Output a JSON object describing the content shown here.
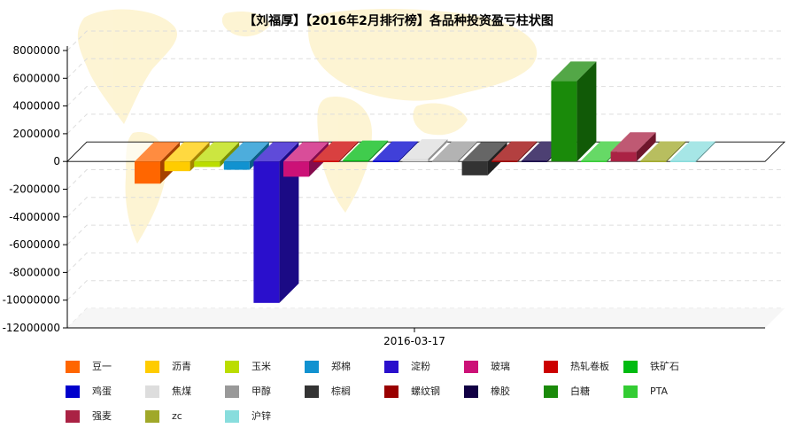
{
  "chart_data": {
    "type": "bar",
    "title": "【刘福厚】【2016年2月排行榜】各品种投资盈亏柱状图",
    "xlabel": "",
    "ylabel": "",
    "categories": [
      "2016-03-17"
    ],
    "ylim": [
      -12000000,
      8000000
    ],
    "yticks": [
      8000000,
      6000000,
      4000000,
      2000000,
      0,
      -2000000,
      -4000000,
      -6000000,
      -8000000,
      -10000000,
      -12000000
    ],
    "grid": true,
    "legend_position": "bottom",
    "series": [
      {
        "name": "豆一",
        "value": -1600000,
        "color": "#ff6600"
      },
      {
        "name": "沥青",
        "value": -700000,
        "color": "#ffcc00"
      },
      {
        "name": "玉米",
        "value": -400000,
        "color": "#bbdd00"
      },
      {
        "name": "郑棉",
        "value": -600000,
        "color": "#1192d0"
      },
      {
        "name": "淀粉",
        "value": -10200000,
        "color": "#2a0fcc"
      },
      {
        "name": "玻璃",
        "value": -1100000,
        "color": "#cc1177"
      },
      {
        "name": "热轧卷板",
        "value": 0,
        "color": "#cc0000"
      },
      {
        "name": "铁矿石",
        "value": 100000,
        "color": "#00bb11"
      },
      {
        "name": "鸡蛋",
        "value": 0,
        "color": "#0000cc"
      },
      {
        "name": "焦煤",
        "value": 200000,
        "color": "#dddddd"
      },
      {
        "name": "甲醇",
        "value": 0,
        "color": "#999999"
      },
      {
        "name": "棕榈",
        "value": -1000000,
        "color": "#333333"
      },
      {
        "name": "螺纹钢",
        "value": 0,
        "color": "#990000"
      },
      {
        "name": "橡胶",
        "value": 0,
        "color": "#110044"
      },
      {
        "name": "白糖",
        "value": 5800000,
        "color": "#1a8a0a"
      },
      {
        "name": "PTA",
        "value": 0,
        "color": "#33cc33"
      },
      {
        "name": "强麦",
        "value": 700000,
        "color": "#aa2244"
      },
      {
        "name": "zc",
        "value": 0,
        "color": "#a0a829"
      },
      {
        "name": "沪锌",
        "value": 0,
        "color": "#88dddd"
      }
    ]
  }
}
